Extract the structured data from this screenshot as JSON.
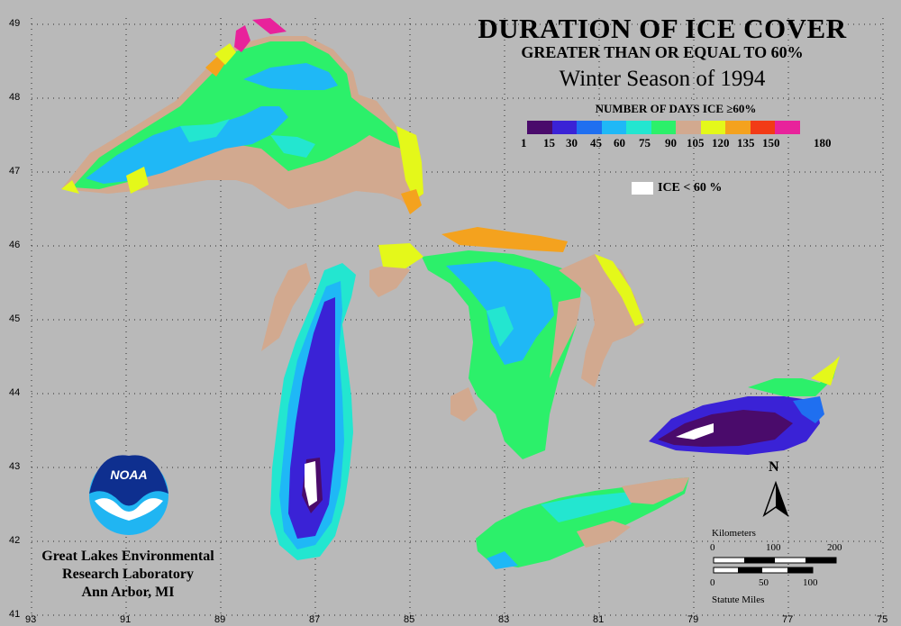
{
  "title": "DURATION OF ICE COVER",
  "subtitle": "GREATER THAN OR EQUAL TO 60%",
  "season": "Winter Season of 1994",
  "legend": {
    "title": "NUMBER OF DAYS ICE ≥60%",
    "ticks": [
      "1",
      "15",
      "30",
      "45",
      "60",
      "75",
      "90",
      "105",
      "120",
      "135",
      "150",
      "180"
    ],
    "colors": [
      "#4a0b6b",
      "#3a22d6",
      "#1f6ff0",
      "#1fb8f6",
      "#23e6d0",
      "#2cf06a",
      "#d2a98f",
      "#e4f81a",
      "#f4a21e",
      "#f23b16",
      "#e8229b"
    ],
    "ice_below_label": "ICE < 60 %",
    "ice_below_color": "#ffffff"
  },
  "latitude_labels": [
    "49",
    "48",
    "47",
    "46",
    "45",
    "44",
    "43",
    "42",
    "41"
  ],
  "longitude_labels": [
    "93",
    "91",
    "89",
    "87",
    "85",
    "83",
    "81",
    "79",
    "77",
    "75"
  ],
  "scale": {
    "km_title": "Kilometers",
    "km_ticks": [
      "0",
      "100",
      "200"
    ],
    "mi_title": "Statute Miles",
    "mi_ticks": [
      "0",
      "50",
      "100"
    ]
  },
  "north_label": "N",
  "logo_text": "NOAA",
  "footer": [
    "Great Lakes Environmental",
    "Research Laboratory",
    "Ann Arbor, MI"
  ]
}
